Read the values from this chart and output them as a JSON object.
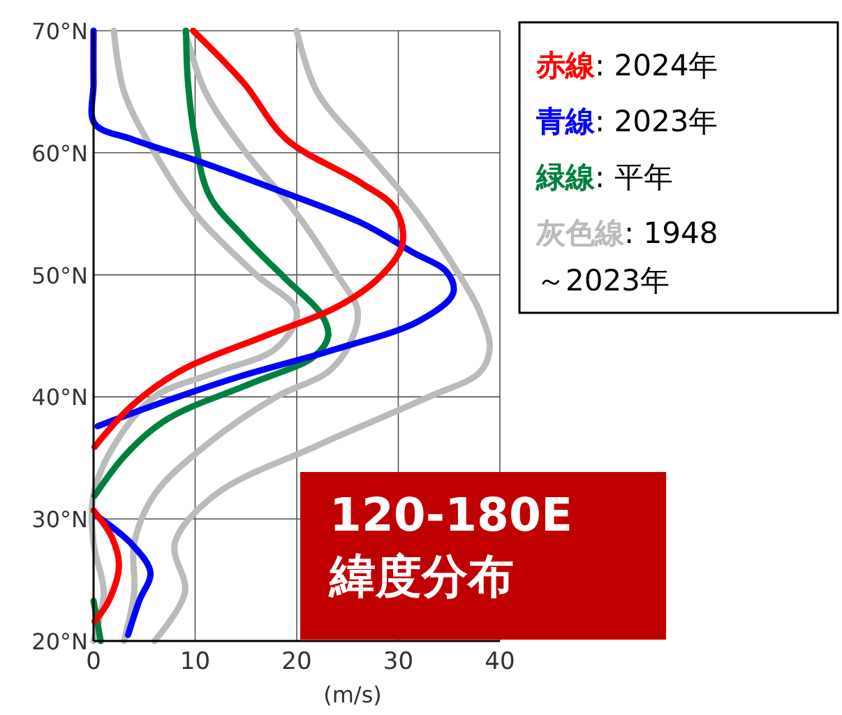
{
  "chart_data": {
    "type": "line",
    "xlabel": "(m/s)",
    "xlim": [
      0,
      40
    ],
    "xticks": [
      0,
      10,
      20,
      30,
      40
    ],
    "ylim": [
      20,
      70
    ],
    "yticks": [
      {
        "value": 20,
        "label": "20°N"
      },
      {
        "value": 30,
        "label": "30°N"
      },
      {
        "value": 40,
        "label": "40°N"
      },
      {
        "value": 50,
        "label": "50°N"
      },
      {
        "value": 60,
        "label": "60°N"
      },
      {
        "value": 70,
        "label": "70°N"
      }
    ],
    "grid": true,
    "legend": "right",
    "marker": "none",
    "line_style": "solid",
    "annotations": [
      "120-180E",
      "緯度分布"
    ],
    "series": [
      {
        "color": "#bbbbbb",
        "x": [
          2,
          3,
          6,
          10,
          16,
          20,
          18,
          12,
          6,
          2,
          0,
          0,
          1,
          0
        ],
        "values": [
          70,
          65,
          60,
          55,
          50,
          47,
          44,
          42,
          40,
          36,
          32,
          28,
          24,
          20
        ]
      },
      {
        "color": "#bbbbbb",
        "x": [
          20,
          22,
          27,
          32,
          36,
          38,
          39,
          38,
          33,
          22,
          12,
          8,
          9,
          6
        ],
        "values": [
          70,
          65,
          60,
          55,
          50,
          47,
          44,
          42,
          40,
          36,
          32,
          28,
          24,
          20
        ]
      },
      {
        "name": "灰色線: 1948～2023年",
        "color": "#bbbbbb",
        "x": [
          9,
          11,
          15,
          20,
          24,
          26,
          25,
          23,
          18,
          11,
          6,
          4,
          4,
          3
        ],
        "values": [
          70,
          65,
          60,
          55,
          50,
          47,
          44,
          42,
          40,
          36,
          32,
          28,
          24,
          20
        ]
      },
      {
        "name": "緑線: 平年",
        "color": "#008040",
        "x": [
          9.1,
          9.3,
          10,
          11.4,
          14.8,
          19,
          22.4,
          23.1,
          21.7,
          15.5,
          7.3,
          3.2,
          0.1,
          null,
          0,
          0.7
        ],
        "values": [
          70,
          65.7,
          61.1,
          56.5,
          53.1,
          49.6,
          46.8,
          45,
          43.3,
          41.1,
          38.2,
          35.3,
          31.9,
          null,
          23.3,
          20
        ]
      },
      {
        "name": "青線: 2023年",
        "color": "#0000ff",
        "x": [
          0,
          0,
          0.1,
          3.8,
          10,
          17.6,
          26.5,
          31.3,
          34.8,
          35.4,
          32,
          23.8,
          14.1,
          5.9,
          0.4,
          null,
          0.4,
          3.8,
          5.6,
          4.5,
          3.4
        ],
        "values": [
          70,
          65.7,
          62.4,
          61.1,
          59.4,
          57.1,
          54.2,
          51.9,
          50.2,
          48.5,
          46.2,
          43.9,
          41.6,
          39.3,
          37.6,
          null,
          30.2,
          27.9,
          25.6,
          23.3,
          20.5
        ]
      },
      {
        "name": "赤線: 2024年",
        "color": "#ff0000",
        "x": [
          9.8,
          14.8,
          19,
          26.2,
          29.7,
          30.4,
          27.9,
          23.8,
          16.9,
          8.7,
          3.8,
          0.1,
          null,
          0,
          1.8,
          2.5,
          1.5,
          0.1
        ],
        "values": [
          70,
          65.7,
          61.1,
          57.6,
          55.4,
          52.5,
          49.6,
          47.3,
          45,
          42.2,
          39.3,
          35.9,
          null,
          30.7,
          28.5,
          26.2,
          23.3,
          21.6
        ]
      }
    ]
  }
}
